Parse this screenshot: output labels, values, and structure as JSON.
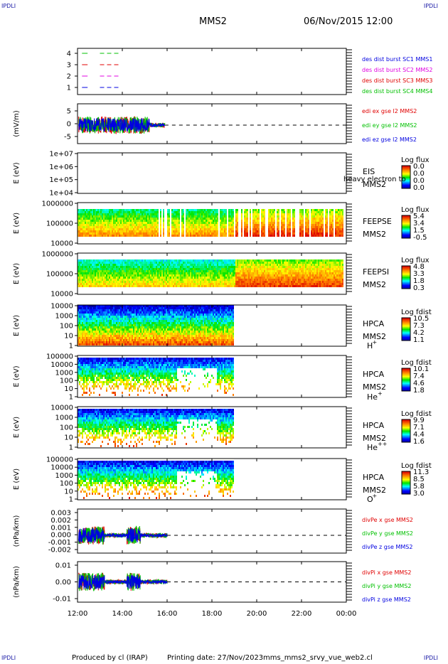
{
  "header": {
    "corner_label": "IPDLI",
    "spacecraft": "MMS2",
    "datetime": "06/Nov/2015 12:00"
  },
  "footer": {
    "producer": "Produced by cl (IRAP)",
    "printing": "Printing date: 27/Nov/2023",
    "script": "mms_mms2_srvy_vue_web2.cl"
  },
  "colors": {
    "red": "#e00000",
    "magenta": "#e000e0",
    "green": "#00c000",
    "blue": "#0000e0",
    "label_blue": "#1a1aa6"
  },
  "chart_data": [
    {
      "type": "line",
      "id": "dist-burst",
      "ylabel": "",
      "yticks": [
        "1",
        "2",
        "3",
        "4"
      ],
      "ylim": [
        0.5,
        4.5
      ],
      "series": [
        {
          "name": "des dist burst SC1 MMS1",
          "color": "#00c000",
          "level": 4
        },
        {
          "name": "des dist burst SC2 MMS2",
          "color": "#e00000",
          "level": 3
        },
        {
          "name": "des dist burst SC3 MMS3",
          "color": "#e000e0",
          "level": 2
        },
        {
          "name": "des dist burst SC4 MMS4",
          "color": "#0000e0",
          "level": 1
        }
      ],
      "legend_colors": [
        "#0000e0",
        "#e000e0",
        "#e00000",
        "#00c000"
      ]
    },
    {
      "type": "line",
      "id": "edi-e",
      "ylabel": "(mV/m)",
      "yticks": [
        "5",
        "0",
        "-5"
      ],
      "ylim": [
        -8,
        8
      ],
      "series": [
        {
          "name": "edi ex gse l2 MMS2",
          "color": "#e00000"
        },
        {
          "name": "edi ey gse l2 MMS2",
          "color": "#00c000"
        },
        {
          "name": "edi ez gse l2 MMS2",
          "color": "#0000e0"
        }
      ]
    },
    {
      "type": "heatmap",
      "id": "eis",
      "ylabel": "E (eV)",
      "yticks": [
        "1e+07",
        "1e+06",
        "1e+05",
        "1e+04"
      ],
      "instrument": "EIS",
      "sc": "MMS2",
      "overlay": "heavy electron to",
      "colorbar": {
        "title": "Log flux",
        "ticks": [
          "0.0",
          "0.0",
          "0.0",
          "0.0"
        ]
      }
    },
    {
      "type": "heatmap",
      "id": "feepse",
      "ylabel": "E (eV)",
      "yticks": [
        "1000000",
        "100000",
        "10000"
      ],
      "instrument": "FEEPSE",
      "sc": "MMS2",
      "colorbar": {
        "title": "Log flux",
        "ticks": [
          "5.4",
          "3.4",
          "1.5",
          "-0.5"
        ]
      }
    },
    {
      "type": "heatmap",
      "id": "feepsi",
      "ylabel": "E (eV)",
      "yticks": [
        "1000000",
        "100000",
        "10000"
      ],
      "instrument": "FEEPSI",
      "sc": "MMS2",
      "colorbar": {
        "title": "Log flux",
        "ticks": [
          "4.8",
          "3.3",
          "1.8",
          "0.3"
        ]
      }
    },
    {
      "type": "heatmap",
      "id": "hpca-h",
      "ylabel": "E (eV)",
      "yticks": [
        "10000",
        "1000",
        "100",
        "10",
        "1"
      ],
      "instrument": "HPCA",
      "sc": "MMS2",
      "species": "H",
      "charge": "+",
      "colorbar": {
        "title": "Log fdist",
        "ticks": [
          "10.5",
          "7.3",
          "4.2",
          "1.1"
        ]
      }
    },
    {
      "type": "heatmap",
      "id": "hpca-he",
      "ylabel": "E (eV)",
      "yticks": [
        "100000",
        "10000",
        "1000",
        "100",
        "10",
        "1"
      ],
      "instrument": "HPCA",
      "sc": "MMS2",
      "species": "He",
      "charge": "+",
      "colorbar": {
        "title": "Log fdist",
        "ticks": [
          "10.1",
          "7.4",
          "4.6",
          "1.8"
        ]
      }
    },
    {
      "type": "heatmap",
      "id": "hpca-he2",
      "ylabel": "E (eV)",
      "yticks": [
        "10000",
        "1000",
        "100",
        "10",
        "1"
      ],
      "instrument": "HPCA",
      "sc": "MMS2",
      "species": "He",
      "charge": "++",
      "colorbar": {
        "title": "Log fdist",
        "ticks": [
          "9.9",
          "7.1",
          "4.4",
          "1.6"
        ]
      }
    },
    {
      "type": "heatmap",
      "id": "hpca-o",
      "ylabel": "E (eV)",
      "yticks": [
        "100000",
        "10000",
        "1000",
        "100",
        "10",
        "1"
      ],
      "instrument": "HPCA",
      "sc": "MMS2",
      "species": "O",
      "charge": "+",
      "colorbar": {
        "title": "Log fdist",
        "ticks": [
          "11.3",
          "8.5",
          "5.8",
          "3.0"
        ]
      }
    },
    {
      "type": "line",
      "id": "divpe",
      "ylabel": "(nPa/km)",
      "yticks": [
        "0.003",
        "0.002",
        "0.001",
        "0.000",
        "-0.001",
        "-0.002"
      ],
      "ylim": [
        -0.0022,
        0.0032
      ],
      "series": [
        {
          "name": "divPe x gse MMS2",
          "color": "#e00000"
        },
        {
          "name": "divPe y gse MMS2",
          "color": "#00c000"
        },
        {
          "name": "divPe z gse MMS2",
          "color": "#0000e0"
        }
      ]
    },
    {
      "type": "line",
      "id": "divpi",
      "ylabel": "(nPa/km)",
      "yticks": [
        "0.01",
        "0.00",
        "-0.01"
      ],
      "ylim": [
        -0.015,
        0.015
      ],
      "series": [
        {
          "name": "divPi x gse MMS2",
          "color": "#e00000"
        },
        {
          "name": "divPi y gse MMS2",
          "color": "#00c000"
        },
        {
          "name": "divPi z gse MMS2",
          "color": "#0000e0"
        }
      ]
    }
  ],
  "time_axis": {
    "ticks": [
      "12:00",
      "14:00",
      "16:00",
      "18:00",
      "20:00",
      "22:00",
      "00:00"
    ],
    "range_hours": [
      12,
      24
    ],
    "data_end_hours": {
      "edi": 15.9,
      "feeps": 23.9,
      "hpca": 19.0,
      "divp": 16.0
    }
  }
}
